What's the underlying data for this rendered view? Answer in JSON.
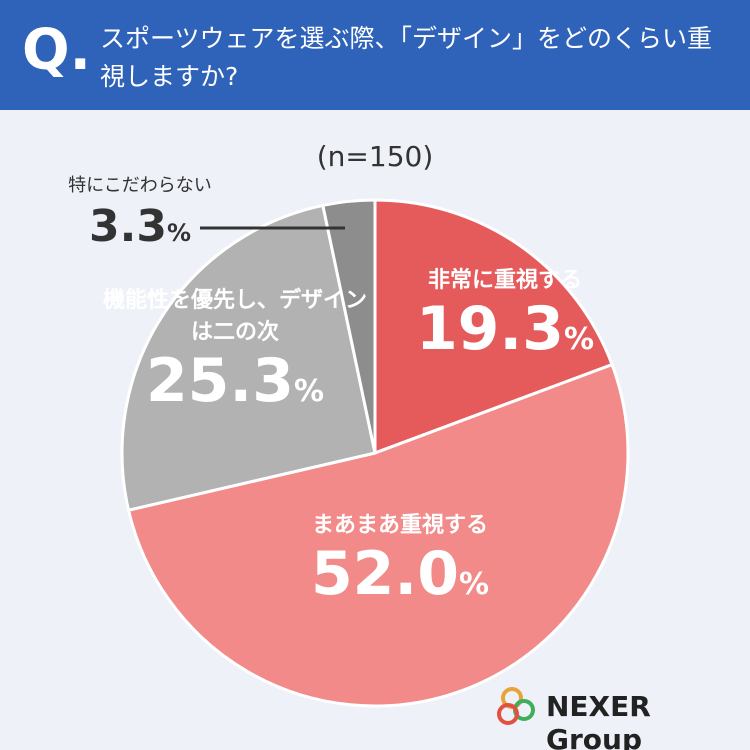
{
  "chart_data": {
    "type": "pie",
    "question_mark": "Q.",
    "title": "スポーツウェアを選ぶ際、「デザイン」をどのくらい重視しますか?",
    "subtitle": "(n=150)",
    "categories": [
      "非常に重視する",
      "まあまあ重視する",
      "機能性を優先し、デザインは二の次",
      "特にこだわらない"
    ],
    "values": [
      19.3,
      52.0,
      25.3,
      3.3
    ],
    "value_labels": [
      "19.3",
      "52.0",
      "25.3",
      "3.3"
    ],
    "value_unit": "%",
    "colors": [
      "#e55b5c",
      "#f18a89",
      "#b2b2b2",
      "#8d8d8d"
    ],
    "brand": "NEXER Group"
  }
}
